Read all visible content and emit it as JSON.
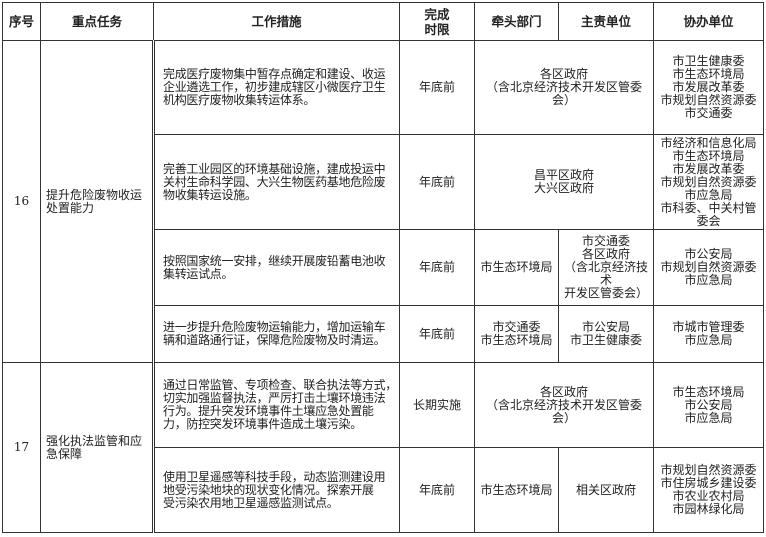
{
  "headers": {
    "no": "序号",
    "task": "重点任务",
    "measures": "工作措施",
    "deadline": "完成\n时限",
    "lead": "牵头部门",
    "responsible": "主责单位",
    "assist": "协办单位"
  },
  "groups": [
    {
      "no": "16",
      "task": "提升危险废物收运\n处置能力",
      "rows": [
        {
          "measure": "完成医疗废物集中暂存点确定和建设、收运\n企业遴选工作，初步建成辖区小微医疗卫生\n机构医疗废物收集转运体系。",
          "deadline": "年底前",
          "lead_responsible": "各区政府\n（含北京经济技术开发区管委会）",
          "assist": "市卫生健康委\n市生态环境局\n市发展改革委\n市规划自然资源委\n市交通委"
        },
        {
          "measure": "完善工业园区的环境基础设施，建成投运中\n关村生命科学园、大兴生物医药基地危险废\n物收集转运设施。",
          "deadline": "年底前",
          "lead_responsible": "昌平区政府\n大兴区政府",
          "assist": "市经济和信息化局\n市生态环境局\n市发展改革委\n市规划自然资源委\n市应急局\n市科委、中关村管委会"
        },
        {
          "measure": "按照国家统一安排，继续开展废铅蓄电池收\n集转运试点。",
          "deadline": "年底前",
          "lead": "市生态环境局",
          "responsible": "市交通委\n各区政府\n（含北京经济技术\n开发区管委会）",
          "assist": "市公安局\n市规划自然资源委\n市应急局"
        },
        {
          "measure": "进一步提升危险废物运输能力，增加运输车\n辆和道路通行证，保障危险废物及时清运。",
          "deadline": "年底前",
          "lead": "市交通委\n市生态环境局",
          "responsible": "市公安局\n市卫生健康委",
          "assist": "市城市管理委\n市应急局"
        }
      ]
    },
    {
      "no": "17",
      "task": "强化执法监管和应\n急保障",
      "rows": [
        {
          "measure": "通过日常监管、专项检查、联合执法等方式，\n切实加强监督执法，严厉打击土壤环境违法\n行为。提升突发环境事件土壤应急处置能\n力，防控突发环境事件造成土壤污染。",
          "deadline": "长期实施",
          "lead_responsible": "各区政府\n（含北京经济技术开发区管委会）",
          "assist": "市生态环境局\n市公安局\n市应急局"
        },
        {
          "measure": "使用卫星遥感等科技手段，动态监测建设用\n地受污染地块的现状变化情况。探索开展\n受污染农用地卫星遥感监测试点。",
          "deadline": "年底前",
          "lead": "市生态环境局",
          "responsible": "相关区政府",
          "assist": "市规划自然资源委\n市住房城乡建设委\n市农业农村局\n市园林绿化局"
        }
      ]
    }
  ]
}
